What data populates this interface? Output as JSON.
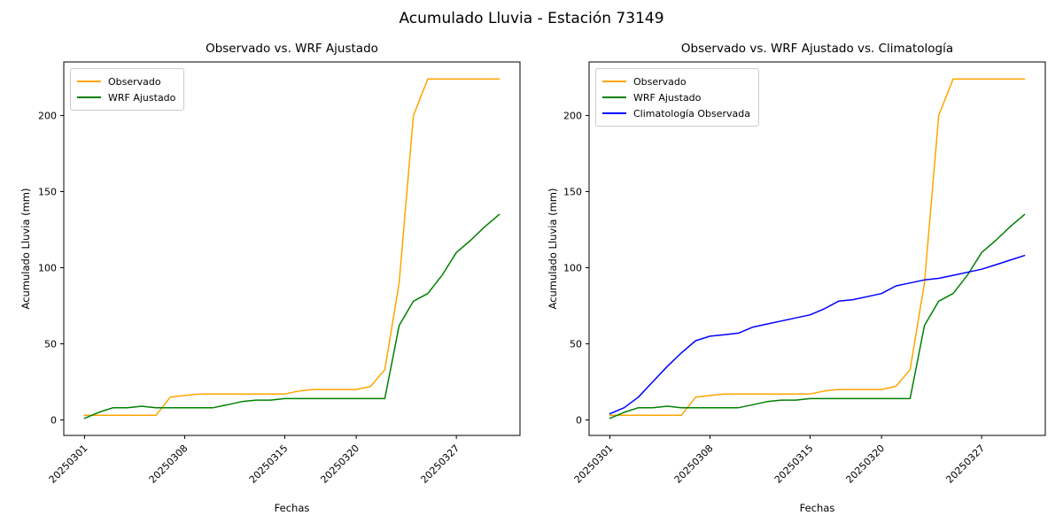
{
  "figure": {
    "title": "Acumulado Lluvia - Estación 73149"
  },
  "colors": {
    "observado": "#ffa500",
    "wrf": "#008000",
    "climatologia": "#0000ff",
    "axis": "#000000"
  },
  "chart_data": [
    {
      "type": "line",
      "title": "Observado vs. WRF Ajustado",
      "xlabel": "Fechas",
      "ylabel": "Acumulado Lluvia (mm)",
      "legend_position": "upper left",
      "grid": false,
      "xlim": [
        -0.45,
        31.45
      ],
      "ylim": [
        -10.2,
        235.2
      ],
      "yticks": [
        0,
        50,
        100,
        150,
        200
      ],
      "xticks": {
        "positions": [
          1,
          8,
          15,
          20,
          27
        ],
        "labels": [
          "20250301",
          "20250308",
          "20250315",
          "20250320",
          "20250327"
        ]
      },
      "dates": [
        "20250301",
        "20250302",
        "20250303",
        "20250304",
        "20250305",
        "20250306",
        "20250307",
        "20250308",
        "20250309",
        "20250310",
        "20250311",
        "20250312",
        "20250313",
        "20250314",
        "20250315",
        "20250316",
        "20250317",
        "20250318",
        "20250319",
        "20250320",
        "20250321",
        "20250322",
        "20250323",
        "20250324",
        "20250325",
        "20250326",
        "20250327",
        "20250328",
        "20250329",
        "20250330"
      ],
      "series": [
        {
          "name": "Observado",
          "color": "#ffa500",
          "values": [
            3,
            3,
            3,
            3,
            3,
            3,
            15,
            16,
            17,
            17,
            17,
            17,
            17,
            17,
            17,
            19,
            20,
            20,
            20,
            20,
            22,
            33,
            90,
            200,
            224,
            224,
            224,
            224,
            224,
            224
          ]
        },
        {
          "name": "WRF Ajustado",
          "color": "#008000",
          "values": [
            1,
            5,
            8,
            8,
            9,
            8,
            8,
            8,
            8,
            8,
            10,
            12,
            13,
            13,
            14,
            14,
            14,
            14,
            14,
            14,
            14,
            14,
            62,
            78,
            83,
            95,
            110,
            118,
            127,
            135
          ]
        }
      ]
    },
    {
      "type": "line",
      "title": "Observado vs. WRF Ajustado vs. Climatología",
      "xlabel": "Fechas",
      "ylabel": "Acumulado Lluvia (mm)",
      "legend_position": "upper left",
      "grid": false,
      "xlim": [
        -0.45,
        31.45
      ],
      "ylim": [
        -10.2,
        235.2
      ],
      "yticks": [
        0,
        50,
        100,
        150,
        200
      ],
      "xticks": {
        "positions": [
          1,
          8,
          15,
          20,
          27
        ],
        "labels": [
          "20250301",
          "20250308",
          "20250315",
          "20250320",
          "20250327"
        ]
      },
      "dates": [
        "20250301",
        "20250302",
        "20250303",
        "20250304",
        "20250305",
        "20250306",
        "20250307",
        "20250308",
        "20250309",
        "20250310",
        "20250311",
        "20250312",
        "20250313",
        "20250314",
        "20250315",
        "20250316",
        "20250317",
        "20250318",
        "20250319",
        "20250320",
        "20250321",
        "20250322",
        "20250323",
        "20250324",
        "20250325",
        "20250326",
        "20250327",
        "20250328",
        "20250329",
        "20250330"
      ],
      "series": [
        {
          "name": "Observado",
          "color": "#ffa500",
          "values": [
            3,
            3,
            3,
            3,
            3,
            3,
            15,
            16,
            17,
            17,
            17,
            17,
            17,
            17,
            17,
            19,
            20,
            20,
            20,
            20,
            22,
            33,
            90,
            200,
            224,
            224,
            224,
            224,
            224,
            224
          ]
        },
        {
          "name": "WRF Ajustado",
          "color": "#008000",
          "values": [
            1,
            5,
            8,
            8,
            9,
            8,
            8,
            8,
            8,
            8,
            10,
            12,
            13,
            13,
            14,
            14,
            14,
            14,
            14,
            14,
            14,
            14,
            62,
            78,
            83,
            95,
            110,
            118,
            127,
            135
          ]
        },
        {
          "name": "Climatología Observada",
          "color": "#0000ff",
          "values": [
            4,
            8,
            15,
            25,
            35,
            44,
            52,
            55,
            56,
            57,
            61,
            63,
            65,
            67,
            69,
            73,
            78,
            79,
            81,
            83,
            88,
            90,
            92,
            93,
            95,
            97,
            99,
            102,
            105,
            108
          ]
        }
      ]
    }
  ]
}
